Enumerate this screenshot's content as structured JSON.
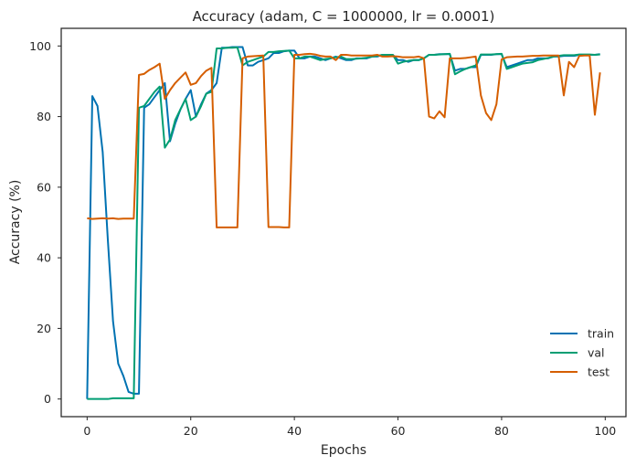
{
  "chart_data": {
    "type": "line",
    "title": "Accuracy (adam, C = 1000000, lr = 0.0001)",
    "xlabel": "Epochs",
    "ylabel": "Accuracy (%)",
    "xlim": [
      -5,
      104
    ],
    "ylim": [
      -5,
      105
    ],
    "xticks": [
      0,
      20,
      40,
      60,
      80,
      100
    ],
    "yticks": [
      0,
      20,
      40,
      60,
      80,
      100
    ],
    "xtick_labels": [
      "0",
      "20",
      "40",
      "60",
      "80",
      "100"
    ],
    "ytick_labels": [
      "0",
      "20",
      "40",
      "60",
      "80",
      "100"
    ],
    "grid": false,
    "legend_position": "bottom-right",
    "series": [
      {
        "name": "train",
        "color": "#0072b2",
        "x": [
          0,
          1,
          2,
          3,
          4,
          5,
          6,
          7,
          8,
          9,
          10,
          11,
          12,
          13,
          14,
          15,
          16,
          17,
          18,
          19,
          20,
          21,
          22,
          23,
          24,
          25,
          26,
          27,
          28,
          29,
          30,
          31,
          32,
          33,
          34,
          35,
          36,
          37,
          38,
          39,
          40,
          41,
          42,
          43,
          44,
          45,
          46,
          47,
          48,
          49,
          50,
          51,
          52,
          53,
          54,
          55,
          56,
          57,
          58,
          59,
          60,
          61,
          62,
          63,
          64,
          65,
          66,
          67,
          68,
          69,
          70,
          71,
          72,
          73,
          74,
          75,
          76,
          77,
          78,
          79,
          80,
          81,
          82,
          83,
          84,
          85,
          86,
          87,
          88,
          89,
          90,
          91,
          92,
          93,
          94,
          95,
          96,
          97,
          98,
          99
        ],
        "y": [
          0,
          85.8,
          83,
          70,
          45,
          22,
          10,
          6.5,
          2,
          1.5,
          1.5,
          82.5,
          83.5,
          85.5,
          87.5,
          89.5,
          73,
          78,
          82,
          85,
          87.5,
          80,
          83.5,
          86.5,
          87.5,
          89.5,
          99.5,
          99.5,
          99.7,
          99.7,
          99.7,
          94.5,
          94.5,
          95.5,
          96,
          96.5,
          98,
          98,
          98.5,
          98.7,
          98.7,
          96.5,
          96.5,
          97,
          97,
          96.5,
          96,
          96.5,
          97,
          96.5,
          96,
          96,
          96.5,
          96.5,
          96.5,
          97,
          97,
          97.5,
          97.5,
          97.5,
          96,
          96,
          95.5,
          96,
          96,
          96.5,
          97.5,
          97.5,
          97.7,
          97.7,
          97.7,
          93,
          93.5,
          93.5,
          94,
          94,
          97.5,
          97.5,
          97.5,
          97.7,
          97.7,
          94,
          94.5,
          95,
          95.5,
          96,
          96,
          96.5,
          96.5,
          96.5,
          97,
          97,
          97.2,
          97.2,
          97.2,
          97.5,
          97.5,
          97.5,
          97.5,
          97.7
        ]
      },
      {
        "name": "val",
        "color": "#009e73",
        "x": [
          0,
          1,
          2,
          3,
          4,
          5,
          6,
          7,
          8,
          9,
          10,
          11,
          12,
          13,
          14,
          15,
          16,
          17,
          18,
          19,
          20,
          21,
          22,
          23,
          24,
          25,
          26,
          27,
          28,
          29,
          30,
          31,
          32,
          33,
          34,
          35,
          36,
          37,
          38,
          39,
          40,
          41,
          42,
          43,
          44,
          45,
          46,
          47,
          48,
          49,
          50,
          51,
          52,
          53,
          54,
          55,
          56,
          57,
          58,
          59,
          60,
          61,
          62,
          63,
          64,
          65,
          66,
          67,
          68,
          69,
          70,
          71,
          72,
          73,
          74,
          75,
          76,
          77,
          78,
          79,
          80,
          81,
          82,
          83,
          84,
          85,
          86,
          87,
          88,
          89,
          90,
          91,
          92,
          93,
          94,
          95,
          96,
          97,
          98,
          99
        ],
        "y": [
          0,
          0,
          0,
          0,
          0,
          0.2,
          0.2,
          0.2,
          0.2,
          0.2,
          82.5,
          83,
          85,
          87,
          88.5,
          71.2,
          73.5,
          79,
          82,
          85,
          79,
          80,
          83,
          86.5,
          87,
          99.3,
          99.3,
          99.5,
          99.5,
          99.6,
          94.5,
          95.5,
          96,
          96.5,
          97,
          98.3,
          98.3,
          98.5,
          98.6,
          98.7,
          96.5,
          96.5,
          97,
          97,
          96.5,
          96,
          96.3,
          96.5,
          96.8,
          97,
          96.3,
          96.3,
          96.4,
          96.5,
          96.7,
          97,
          97.2,
          97.5,
          97.5,
          97.5,
          95,
          95.5,
          95.8,
          96,
          96,
          96.5,
          97.5,
          97.5,
          97.6,
          97.7,
          97.8,
          92,
          92.8,
          93.5,
          94,
          94.5,
          97.6,
          97.6,
          97.6,
          97.7,
          97.8,
          93.5,
          94,
          94.5,
          95,
          95.2,
          95.4,
          96,
          96.3,
          96.6,
          97,
          97.2,
          97.4,
          97.4,
          97.4,
          97.6,
          97.6,
          97.6,
          97.5,
          97.6
        ]
      },
      {
        "name": "test",
        "color": "#d55e00",
        "x": [
          0,
          1,
          2,
          3,
          4,
          5,
          6,
          7,
          8,
          9,
          10,
          11,
          12,
          13,
          14,
          15,
          16,
          17,
          18,
          19,
          20,
          21,
          22,
          23,
          24,
          25,
          26,
          27,
          28,
          29,
          30,
          31,
          32,
          33,
          34,
          35,
          36,
          37,
          38,
          39,
          40,
          41,
          42,
          43,
          44,
          45,
          46,
          47,
          48,
          49,
          50,
          51,
          52,
          53,
          54,
          55,
          56,
          57,
          58,
          59,
          60,
          61,
          62,
          63,
          64,
          65,
          66,
          67,
          68,
          69,
          70,
          71,
          72,
          73,
          74,
          75,
          76,
          77,
          78,
          79,
          80,
          81,
          82,
          83,
          84,
          85,
          86,
          87,
          88,
          89,
          90,
          91,
          92,
          93,
          94,
          95,
          96,
          97,
          98,
          99
        ],
        "y": [
          51.2,
          51,
          51.1,
          51.2,
          51.1,
          51.2,
          51,
          51.1,
          51.1,
          51.1,
          91.8,
          92.1,
          93.2,
          94,
          95,
          85,
          87.5,
          89.5,
          91,
          92.5,
          89,
          89.5,
          91.5,
          93,
          93.8,
          48.6,
          48.6,
          48.6,
          48.6,
          48.6,
          96.5,
          97,
          97.1,
          97.2,
          97.3,
          48.7,
          48.7,
          48.7,
          48.6,
          48.6,
          97.5,
          97.5,
          97.7,
          97.8,
          97.6,
          97.2,
          97,
          97,
          96,
          97.5,
          97.5,
          97.3,
          97.3,
          97.3,
          97.3,
          97.3,
          97.5,
          97,
          97,
          97.1,
          97,
          96.8,
          96.8,
          96.8,
          97,
          96.5,
          80,
          79.5,
          81.5,
          79.8,
          96.5,
          96.5,
          96.5,
          96.6,
          96.8,
          97,
          86,
          81,
          79,
          83.5,
          96.2,
          96.8,
          96.9,
          97,
          97,
          97.1,
          97.2,
          97.2,
          97.3,
          97.3,
          97.3,
          97.3,
          86,
          95.5,
          94,
          97.2,
          97.3,
          97.3,
          80.5,
          92.5
        ]
      }
    ]
  }
}
